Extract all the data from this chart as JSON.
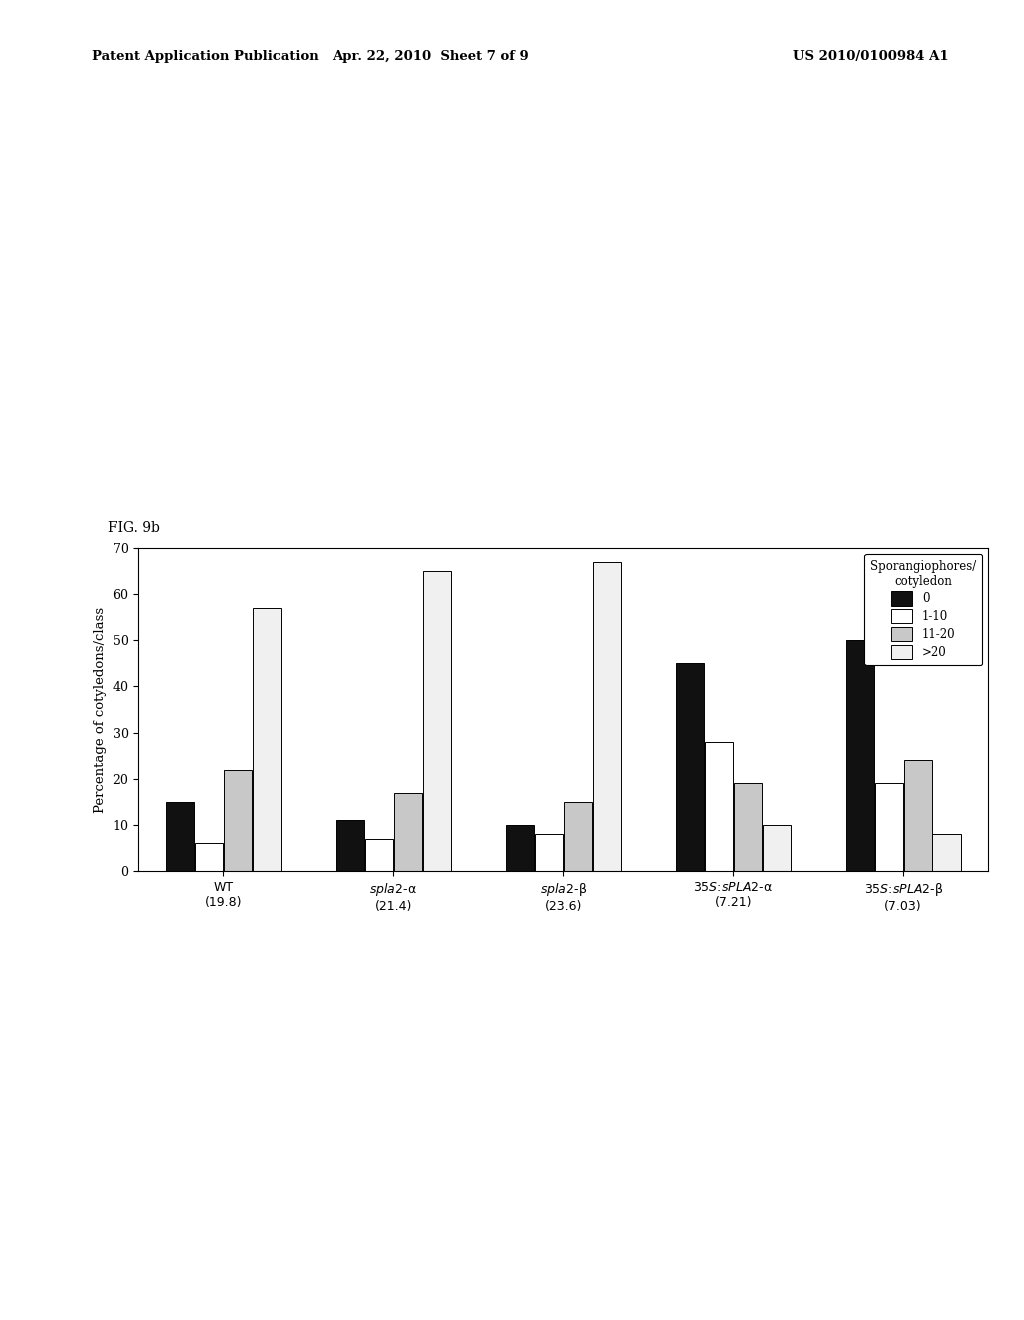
{
  "fig_label": "FIG. 9b",
  "ylabel": "Percentage of cotyledons/class",
  "ylim": [
    0,
    70
  ],
  "yticks": [
    0,
    10,
    20,
    30,
    40,
    50,
    60,
    70
  ],
  "series_labels": [
    "0",
    "1-10",
    "11-20",
    ">20"
  ],
  "series_colors": [
    "#111111",
    "#ffffff",
    "#c8c8c8",
    "#f0f0f0"
  ],
  "data": {
    "0": [
      15,
      11,
      10,
      45,
      50
    ],
    "1-10": [
      6,
      7,
      8,
      28,
      19
    ],
    "11-20": [
      22,
      17,
      15,
      19,
      24
    ],
    ">20": [
      57,
      65,
      67,
      10,
      8
    ]
  },
  "bar_width": 0.17,
  "patent_left": "Patent Application Publication",
  "patent_mid": "Apr. 22, 2010  Sheet 7 of 9",
  "patent_right": "US 2010/0100984 A1",
  "legend_title": "Sporangiophores/\ncotyledon"
}
